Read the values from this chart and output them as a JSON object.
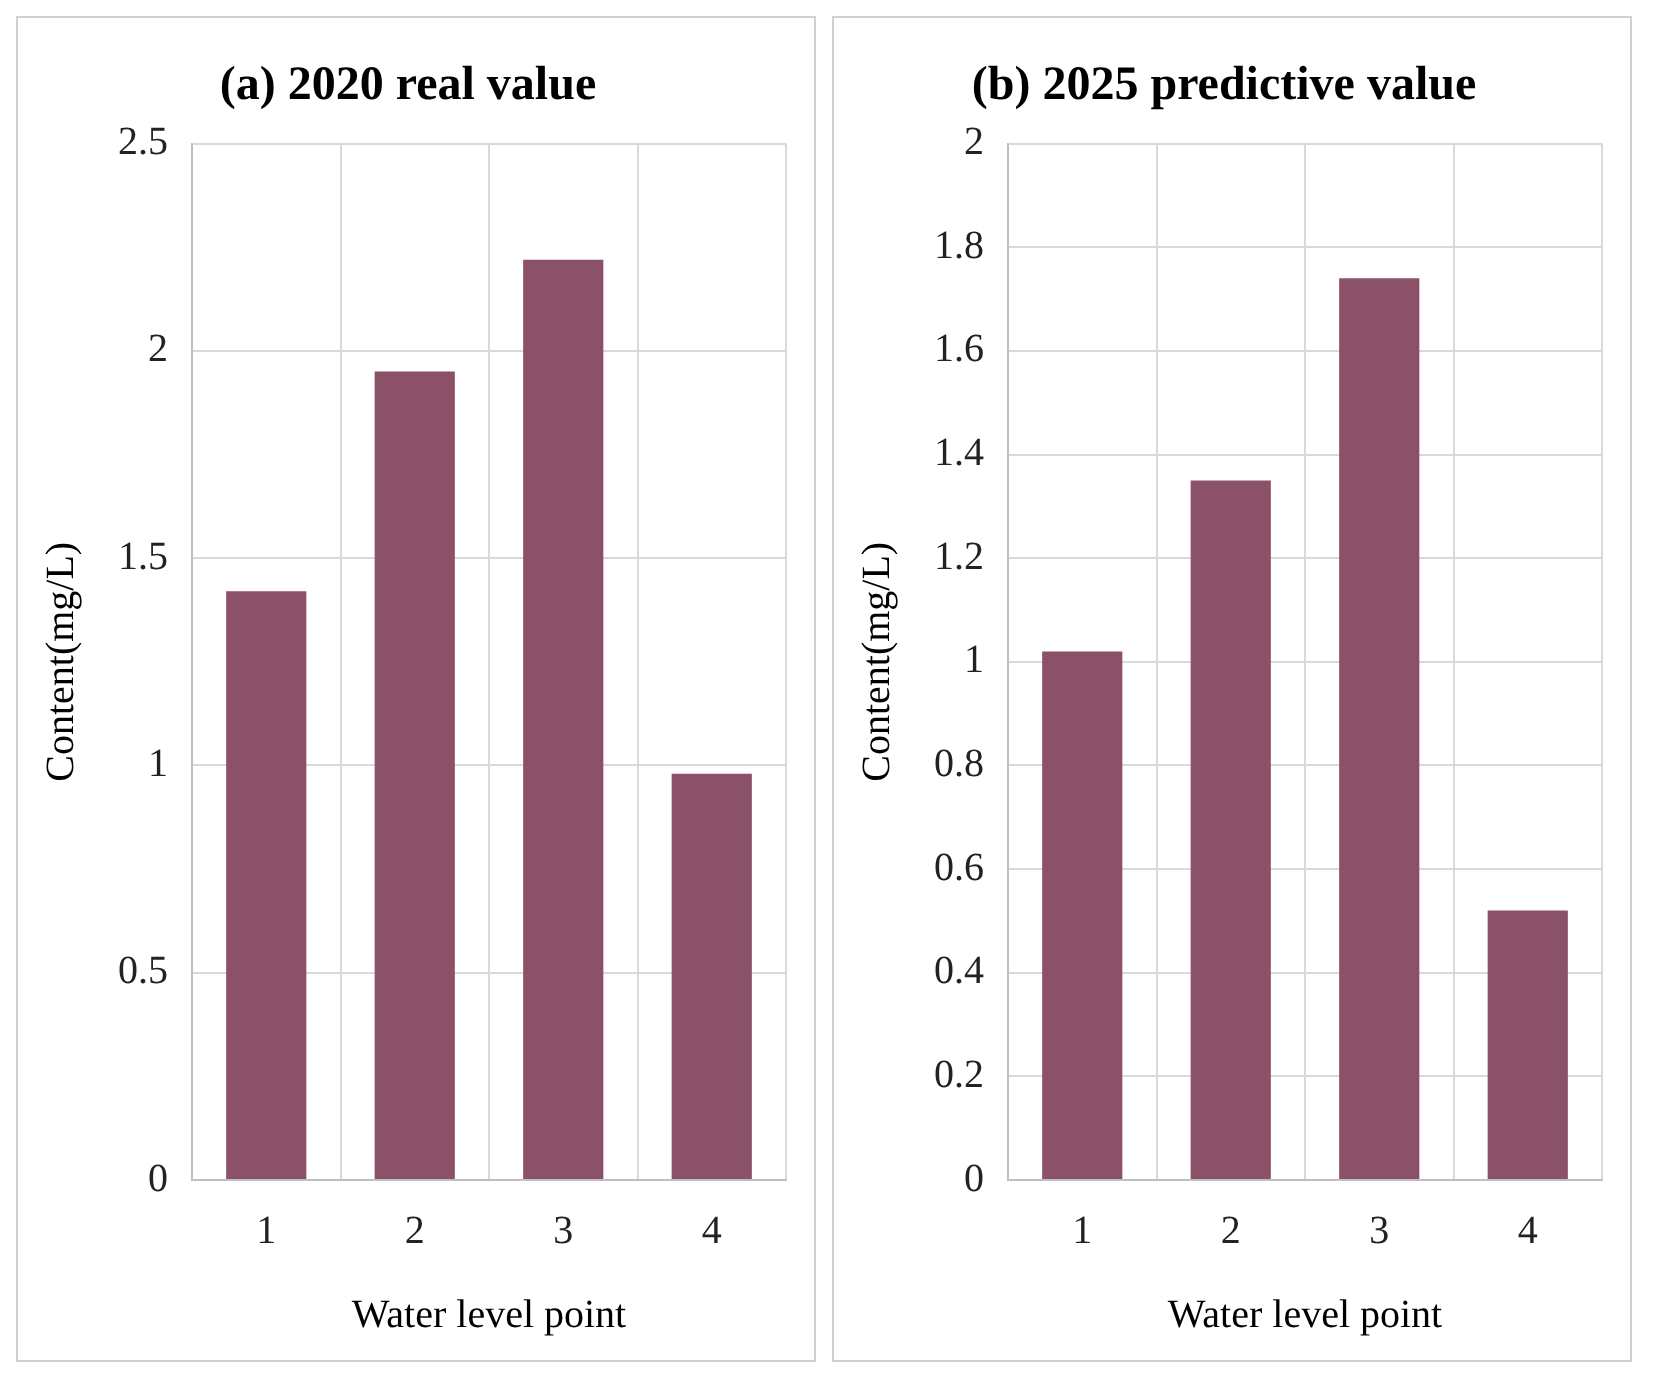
{
  "chart_data": [
    {
      "type": "bar",
      "title": "(a) 2020 real value",
      "xlabel": "Water level point",
      "ylabel": "Content(mg/L)",
      "categories": [
        "1",
        "2",
        "3",
        "4"
      ],
      "values": [
        1.42,
        1.95,
        2.22,
        0.98
      ],
      "color": "#8b5169",
      "ylim": [
        0,
        2.5
      ],
      "yticks": [
        0,
        0.5,
        1,
        1.5,
        2,
        2.5
      ],
      "grid": true
    },
    {
      "type": "bar",
      "title": "(b) 2025 predictive value",
      "xlabel": "Water level point",
      "ylabel": "Content(mg/L)",
      "categories": [
        "1",
        "2",
        "3",
        "4"
      ],
      "values": [
        1.02,
        1.35,
        1.74,
        0.52
      ],
      "color": "#8b5169",
      "ylim": [
        0,
        2
      ],
      "yticks": [
        0,
        0.2,
        0.4,
        0.6,
        0.8,
        1,
        1.2,
        1.4,
        1.6,
        1.8,
        2
      ],
      "grid": true
    }
  ]
}
